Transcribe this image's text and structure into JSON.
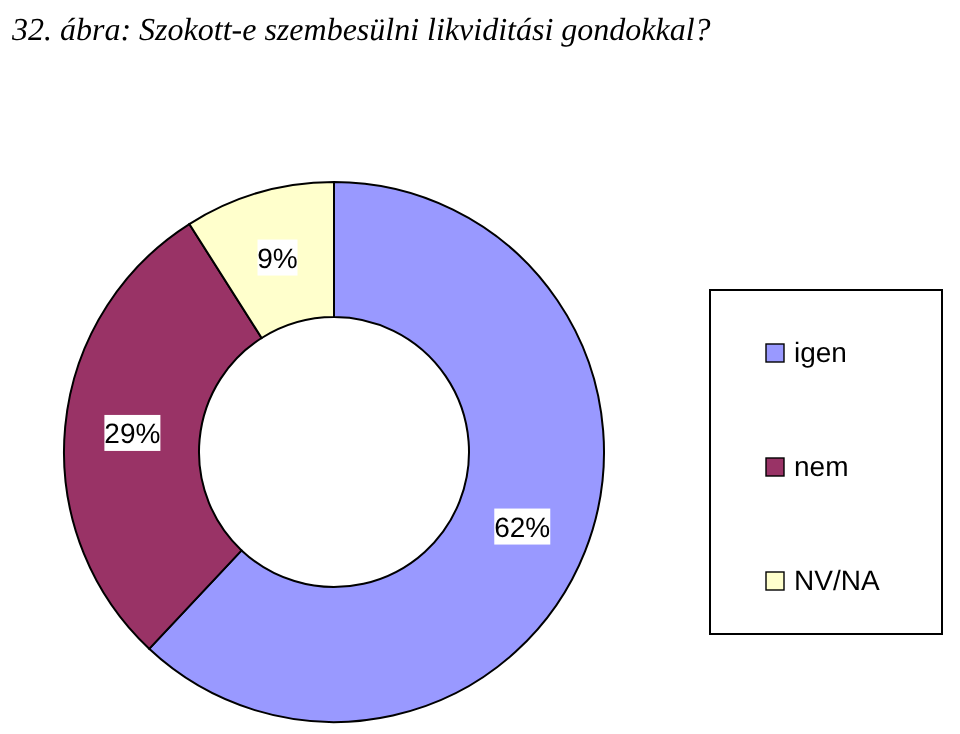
{
  "chart_data": {
    "type": "donut",
    "title": "32. ábra: Szokott-e szembesülni likviditási gondokkal?",
    "categories": [
      "igen",
      "nem",
      "NV/NA"
    ],
    "values": [
      62,
      29,
      9
    ],
    "colors": [
      "#9999ff",
      "#993366",
      "#ffffcc"
    ],
    "value_labels": [
      "62%",
      "29%",
      "9%"
    ],
    "legend": "right"
  }
}
